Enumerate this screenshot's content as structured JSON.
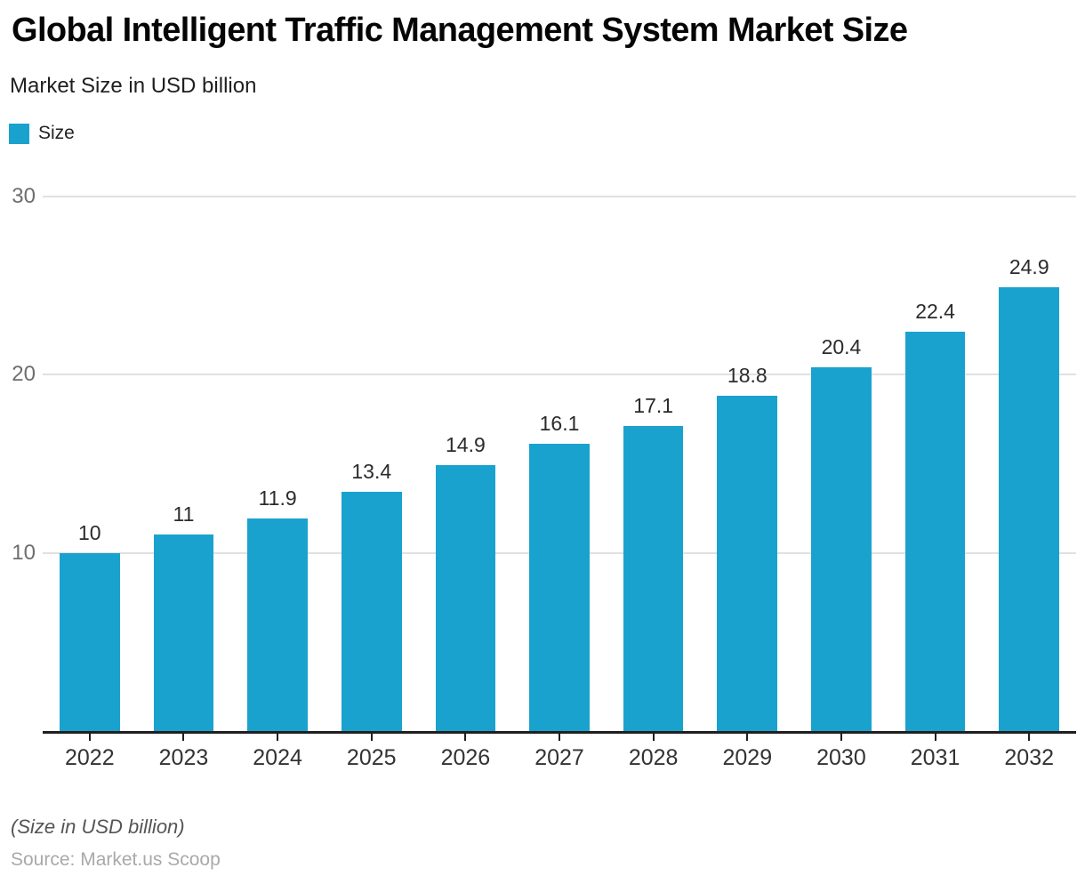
{
  "header": {
    "title": "Global Intelligent Traffic Management System Market Size",
    "subtitle": "Market Size in USD billion"
  },
  "legend": {
    "items": [
      {
        "label": "Size",
        "color": "#1aa2ce"
      }
    ]
  },
  "chart_data": {
    "type": "bar",
    "title": "Global Intelligent Traffic Management System Market Size",
    "subtitle": "Market Size in USD billion",
    "categories": [
      "2022",
      "2023",
      "2024",
      "2025",
      "2026",
      "2027",
      "2028",
      "2029",
      "2030",
      "2031",
      "2032"
    ],
    "series": [
      {
        "name": "Size",
        "values": [
          10,
          11,
          11.9,
          13.4,
          14.9,
          16.1,
          17.1,
          18.8,
          20.4,
          22.4,
          24.9
        ]
      }
    ],
    "value_labels": [
      "10",
      "11",
      "11.9",
      "13.4",
      "14.9",
      "16.1",
      "17.1",
      "18.8",
      "20.4",
      "22.4",
      "24.9"
    ],
    "xlabel": "",
    "ylabel": "",
    "ylim": [
      0,
      30
    ],
    "yticks": [
      10,
      20,
      30
    ],
    "grid": "horizontal",
    "legend_position": "top-left",
    "bar_color": "#1aa2ce",
    "axis_color": "#1f1f1f",
    "gridline_color": "#e1e1e1"
  },
  "footer": {
    "note": "(Size in USD billion)",
    "source": "Source: Market.us Scoop"
  }
}
